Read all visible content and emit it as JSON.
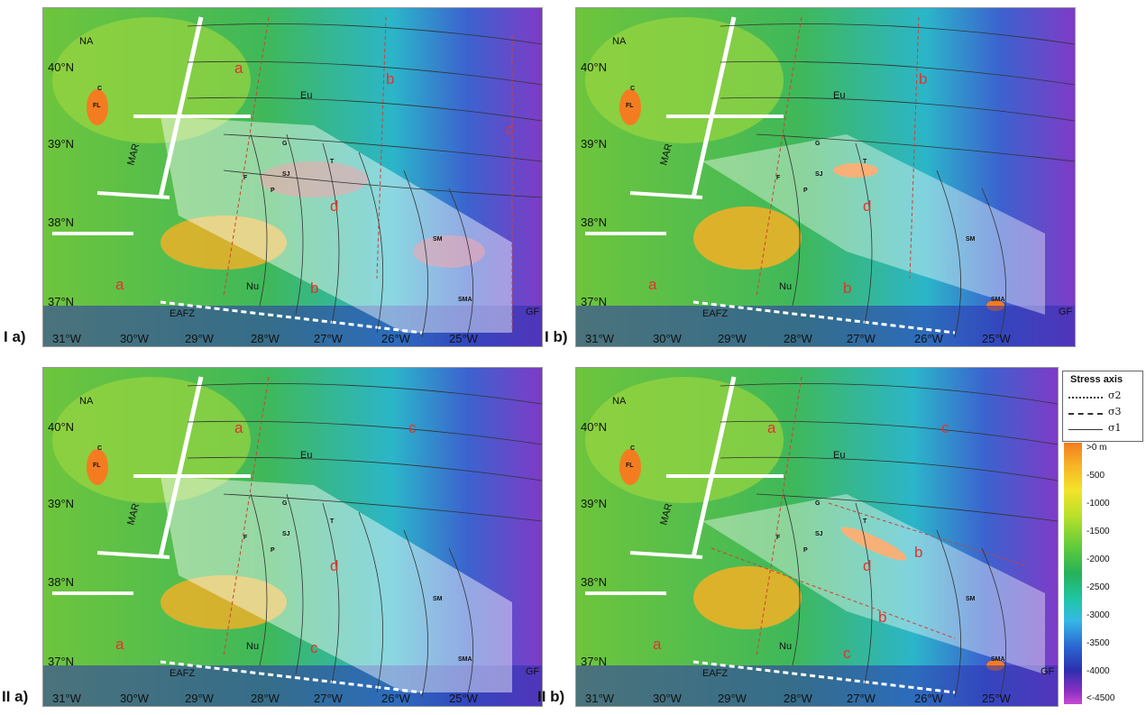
{
  "panels": [
    {
      "id": "Ia",
      "label": "I a)",
      "zones": [
        "a",
        "b",
        "c",
        "d",
        "a",
        "b"
      ]
    },
    {
      "id": "Ib",
      "label": "I b)",
      "zones": [
        "b",
        "d",
        "a",
        "b"
      ]
    },
    {
      "id": "IIa",
      "label": "II a)",
      "zones": [
        "a",
        "c",
        "d",
        "a",
        "c"
      ]
    },
    {
      "id": "IIb",
      "label": "II b)",
      "zones": [
        "a",
        "c",
        "d",
        "b",
        "b",
        "a",
        "c"
      ]
    }
  ],
  "map": {
    "lon_labels": [
      "31°W",
      "30°W",
      "29°W",
      "28°W",
      "27°W",
      "26°W",
      "25°W"
    ],
    "lat_labels": [
      "40°N",
      "39°N",
      "38°N",
      "37°N"
    ],
    "plates": [
      "NA",
      "Eu",
      "Nu"
    ],
    "features": [
      "MAR",
      "EAFZ",
      "GF"
    ],
    "islands": [
      "C",
      "FL",
      "G",
      "F",
      "SJ",
      "P",
      "T",
      "SM",
      "SMA"
    ]
  },
  "legend": {
    "title": "Stress axis",
    "items": [
      {
        "symbol": "σ2",
        "style": "dotted"
      },
      {
        "symbol": "σ3",
        "style": "dashed"
      },
      {
        "symbol": "σ1",
        "style": "solid"
      }
    ]
  },
  "colorbar": {
    "ticks": [
      ">0 m",
      "-500",
      "-1000",
      "-1500",
      "-2000",
      "-2500",
      "-3000",
      "-3500",
      "-4000",
      "<-4500"
    ]
  },
  "colors": {
    "zone_label": "#e4322b",
    "ridge": "#ffffff",
    "deep": "#7a3bc4",
    "shallow": "#f47c20"
  }
}
